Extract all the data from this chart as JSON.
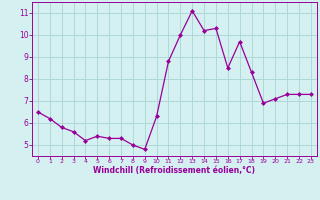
{
  "x": [
    0,
    1,
    2,
    3,
    4,
    5,
    6,
    7,
    8,
    9,
    10,
    11,
    12,
    13,
    14,
    15,
    16,
    17,
    18,
    19,
    20,
    21,
    22,
    23
  ],
  "y": [
    6.5,
    6.2,
    5.8,
    5.6,
    5.2,
    5.4,
    5.3,
    5.3,
    5.0,
    4.8,
    6.3,
    8.8,
    10.0,
    11.1,
    10.2,
    10.3,
    8.5,
    9.7,
    8.3,
    6.9,
    7.1,
    7.3,
    7.3,
    7.3
  ],
  "line_color": "#990099",
  "marker": "D",
  "marker_size": 2.0,
  "bg_color": "#d4f0f0",
  "grid_color": "#aed8d8",
  "xlabel": "Windchill (Refroidissement éolien,°C)",
  "xlabel_color": "#990099",
  "tick_color": "#990099",
  "ylim": [
    4.5,
    11.5
  ],
  "yticks": [
    5,
    6,
    7,
    8,
    9,
    10,
    11
  ],
  "xlim": [
    -0.5,
    23.5
  ],
  "xticks": [
    0,
    1,
    2,
    3,
    4,
    5,
    6,
    7,
    8,
    9,
    10,
    11,
    12,
    13,
    14,
    15,
    16,
    17,
    18,
    19,
    20,
    21,
    22,
    23
  ]
}
